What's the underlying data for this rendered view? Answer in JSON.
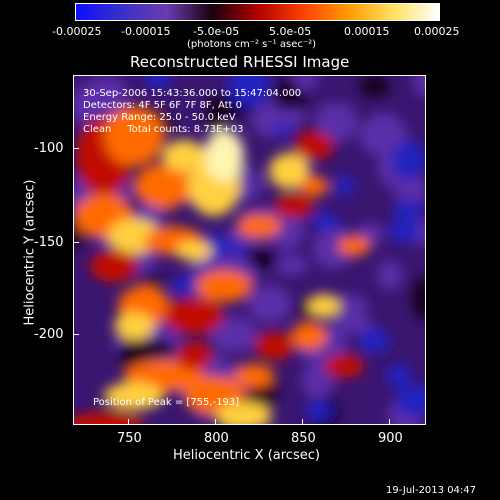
{
  "colorbar": {
    "tick_labels": [
      "-0.00025",
      "-0.00015",
      "-5.0e-05",
      "5.0e-05",
      "0.00015",
      "0.00025"
    ],
    "unit_label": "(photons cm⁻² s⁻¹ asec⁻²)",
    "colors": [
      "#0a10ff",
      "#3a2fc8",
      "#6a3cb0",
      "#1a0010",
      "#b00000",
      "#ff4000",
      "#ff9a00",
      "#ffe060",
      "#ffffff"
    ]
  },
  "plot": {
    "title": "Reconstructed RHESSI Image",
    "annotations": {
      "line1": "30-Sep-2006 15:43:36.000 to 15:47:04.000",
      "line2": "Detectors: 4F 5F 6F 7F 8F, Att 0",
      "line3": "Energy Range: 25.0 - 50.0 keV",
      "line4": "Clean     Total counts: 8.73E+03",
      "peak": "Position of Peak = [755,-193]"
    },
    "xlabel": "Heliocentric X (arcsec)",
    "ylabel": "Heliocentric Y (arcsec)",
    "x_ticks": [
      "750",
      "800",
      "850",
      "900"
    ],
    "y_ticks": [
      "-100",
      "-150",
      "-200"
    ]
  },
  "footer": {
    "timestamp": "19-Jul-2013 04:47"
  }
}
